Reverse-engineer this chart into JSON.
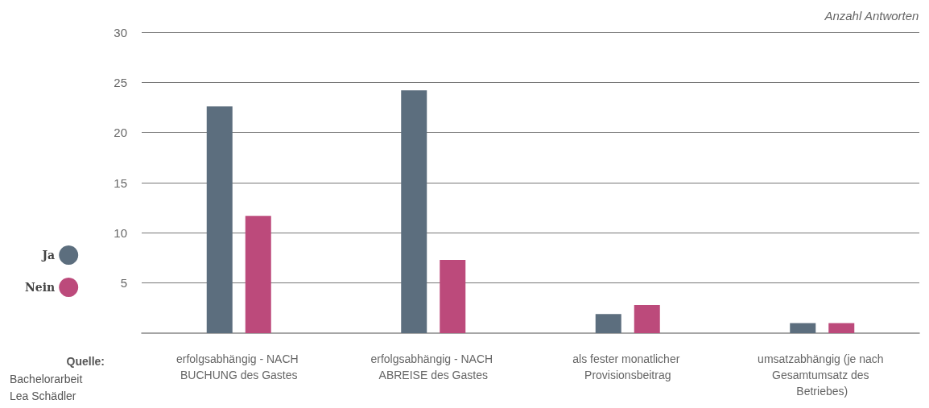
{
  "chart_data": {
    "type": "bar",
    "ylabel": "Anzahl Antworten",
    "categories": [
      "erfolgsabhängig - NACH BUCHUNG des Gastes",
      "erfolgsabhängig - NACH ABREISE des Gastes",
      "als fester monatlicher Provisionsbeitrag",
      "umsatzabhängig (je nach Gesamtumsatz des Betriebes)"
    ],
    "series": [
      {
        "name": "Ja",
        "color": "#5c6e7e",
        "values": [
          22.6,
          24.2,
          1.9,
          1.0
        ]
      },
      {
        "name": "Nein",
        "color": "#bc4a7b",
        "values": [
          11.7,
          7.3,
          2.8,
          1.0
        ]
      }
    ],
    "ylim": [
      0,
      30
    ],
    "yticks": [
      5,
      10,
      15,
      20,
      25,
      30
    ],
    "grid": "y",
    "legend": "left",
    "annotations": [
      "Quelle:",
      "Bachelorarbeit Lea Schädler"
    ]
  }
}
